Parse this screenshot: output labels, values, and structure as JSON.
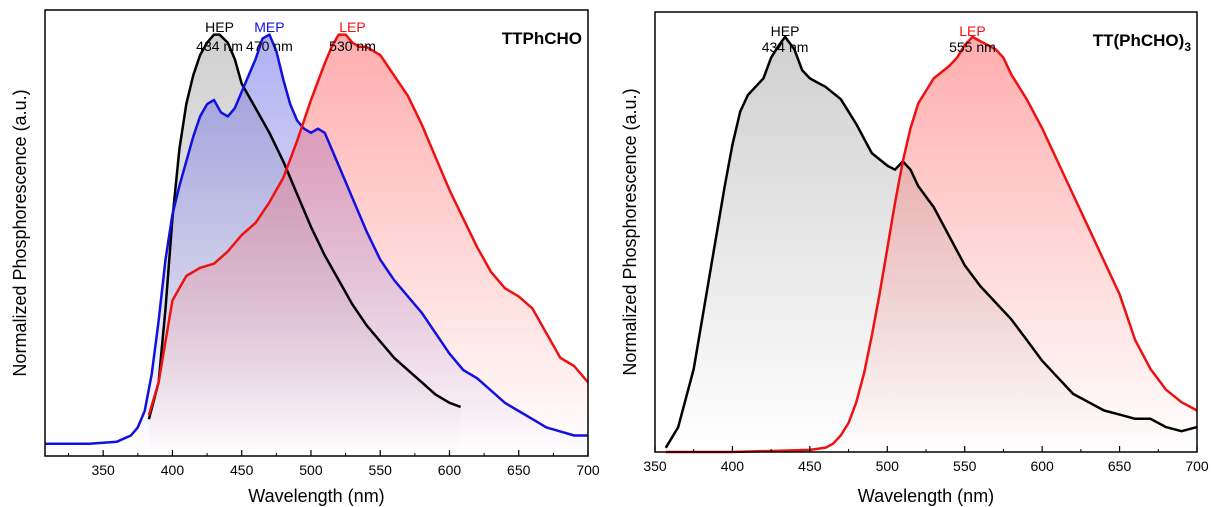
{
  "chart_data": [
    {
      "type": "line",
      "title": "TTPhCHO",
      "xlabel": "Wavelength (nm)",
      "ylabel": "Normalized Phosphorescence (a.u.)",
      "xlim": [
        308,
        700
      ],
      "ylim": [
        -0.03,
        1.06
      ],
      "xticks": [
        350,
        400,
        450,
        500,
        550,
        600,
        650,
        700
      ],
      "grid": false,
      "legend": "none",
      "series": [
        {
          "name": "HEP",
          "color": "#000000",
          "fill": "#a9a9a9",
          "x": [
            383,
            390,
            395,
            400,
            405,
            410,
            415,
            420,
            425,
            430,
            434,
            440,
            445,
            450,
            455,
            460,
            470,
            480,
            490,
            500,
            510,
            520,
            530,
            540,
            550,
            560,
            570,
            580,
            590,
            600,
            608
          ],
          "y": [
            0.06,
            0.15,
            0.33,
            0.55,
            0.72,
            0.83,
            0.9,
            0.95,
            0.98,
            1.0,
            1.0,
            0.98,
            0.94,
            0.88,
            0.85,
            0.82,
            0.76,
            0.69,
            0.61,
            0.53,
            0.46,
            0.4,
            0.34,
            0.29,
            0.25,
            0.21,
            0.18,
            0.15,
            0.12,
            0.1,
            0.09
          ]
        },
        {
          "name": "MEP",
          "color": "#1010e0",
          "fill": "#6f6fe8",
          "x": [
            308,
            340,
            360,
            370,
            375,
            380,
            385,
            390,
            395,
            400,
            405,
            410,
            415,
            420,
            425,
            430,
            435,
            440,
            445,
            450,
            455,
            460,
            465,
            470,
            475,
            480,
            485,
            490,
            495,
            500,
            505,
            510,
            515,
            520,
            530,
            540,
            550,
            560,
            570,
            580,
            590,
            600,
            610,
            620,
            630,
            640,
            650,
            660,
            670,
            680,
            690,
            700
          ],
          "y": [
            0.0,
            0.0,
            0.005,
            0.02,
            0.04,
            0.08,
            0.17,
            0.3,
            0.45,
            0.56,
            0.63,
            0.69,
            0.75,
            0.8,
            0.83,
            0.84,
            0.81,
            0.8,
            0.82,
            0.86,
            0.9,
            0.94,
            0.99,
            1.0,
            0.96,
            0.89,
            0.83,
            0.79,
            0.77,
            0.76,
            0.77,
            0.76,
            0.72,
            0.68,
            0.6,
            0.52,
            0.45,
            0.4,
            0.36,
            0.32,
            0.27,
            0.22,
            0.18,
            0.16,
            0.13,
            0.1,
            0.08,
            0.06,
            0.04,
            0.03,
            0.02,
            0.02
          ]
        },
        {
          "name": "LEP",
          "color": "#ee1111",
          "fill": "#ff6a6a",
          "x": [
            383,
            390,
            395,
            400,
            410,
            420,
            430,
            440,
            450,
            460,
            470,
            480,
            490,
            500,
            510,
            515,
            520,
            525,
            530,
            535,
            540,
            545,
            550,
            560,
            570,
            580,
            590,
            600,
            610,
            620,
            630,
            640,
            650,
            660,
            670,
            680,
            690,
            700
          ],
          "y": [
            0.07,
            0.15,
            0.25,
            0.35,
            0.41,
            0.43,
            0.44,
            0.47,
            0.51,
            0.54,
            0.59,
            0.65,
            0.74,
            0.84,
            0.93,
            0.97,
            1.0,
            1.0,
            0.98,
            0.97,
            0.97,
            0.96,
            0.95,
            0.9,
            0.85,
            0.78,
            0.7,
            0.62,
            0.55,
            0.48,
            0.42,
            0.38,
            0.36,
            0.33,
            0.27,
            0.21,
            0.19,
            0.15
          ]
        }
      ],
      "annotations": [
        {
          "name": "HEP",
          "text": "HEP",
          "subtext": "434 nm",
          "color": "#000000",
          "x": 434
        },
        {
          "name": "MEP",
          "text": "MEP",
          "subtext": "470 nm",
          "color": "#1010e0",
          "x": 470
        },
        {
          "name": "LEP",
          "text": "LEP",
          "subtext": "530 nm",
          "color": "#ee1111",
          "x": 530
        }
      ]
    },
    {
      "type": "line",
      "title": "TT(PhCHO)",
      "title_sub": "3",
      "xlabel": "Wavelength (nm)",
      "ylabel": "Normalized Phosphorescence (a.u.)",
      "xlim": [
        350,
        700
      ],
      "ylim": [
        0.0,
        1.06
      ],
      "xticks": [
        350,
        400,
        450,
        500,
        550,
        600,
        650,
        700
      ],
      "grid": false,
      "legend": "none",
      "series": [
        {
          "name": "HEP",
          "color": "#000000",
          "fill": "#a9a9a9",
          "x": [
            357,
            365,
            375,
            385,
            395,
            400,
            405,
            410,
            415,
            420,
            425,
            430,
            434,
            440,
            445,
            450,
            455,
            460,
            470,
            480,
            490,
            500,
            505,
            510,
            515,
            520,
            530,
            540,
            550,
            560,
            570,
            580,
            590,
            600,
            610,
            620,
            630,
            640,
            650,
            660,
            670,
            680,
            690,
            700
          ],
          "y": [
            0.01,
            0.06,
            0.2,
            0.42,
            0.64,
            0.74,
            0.82,
            0.86,
            0.88,
            0.9,
            0.95,
            0.98,
            1.0,
            0.97,
            0.92,
            0.9,
            0.89,
            0.88,
            0.85,
            0.79,
            0.72,
            0.69,
            0.68,
            0.7,
            0.68,
            0.64,
            0.59,
            0.52,
            0.45,
            0.4,
            0.36,
            0.32,
            0.27,
            0.22,
            0.18,
            0.14,
            0.12,
            0.1,
            0.09,
            0.08,
            0.08,
            0.06,
            0.05,
            0.06
          ]
        },
        {
          "name": "LEP",
          "color": "#ee1111",
          "fill": "#ff6a6a",
          "x": [
            357,
            400,
            450,
            460,
            465,
            470,
            475,
            480,
            485,
            490,
            495,
            500,
            505,
            510,
            515,
            520,
            525,
            530,
            540,
            545,
            550,
            555,
            560,
            565,
            570,
            575,
            580,
            590,
            600,
            610,
            620,
            630,
            640,
            650,
            660,
            670,
            680,
            690,
            700
          ],
          "y": [
            0.0,
            0.0,
            0.005,
            0.01,
            0.02,
            0.04,
            0.07,
            0.12,
            0.19,
            0.28,
            0.38,
            0.49,
            0.6,
            0.7,
            0.78,
            0.84,
            0.87,
            0.9,
            0.93,
            0.95,
            0.98,
            1.0,
            0.99,
            0.98,
            0.97,
            0.95,
            0.91,
            0.85,
            0.78,
            0.7,
            0.62,
            0.54,
            0.46,
            0.38,
            0.27,
            0.2,
            0.15,
            0.12,
            0.1
          ]
        }
      ],
      "annotations": [
        {
          "name": "HEP",
          "text": "HEP",
          "subtext": "434 nm",
          "color": "#000000",
          "x": 434
        },
        {
          "name": "LEP",
          "text": "LEP",
          "subtext": "555 nm",
          "color": "#ee1111",
          "x": 555
        }
      ]
    }
  ]
}
